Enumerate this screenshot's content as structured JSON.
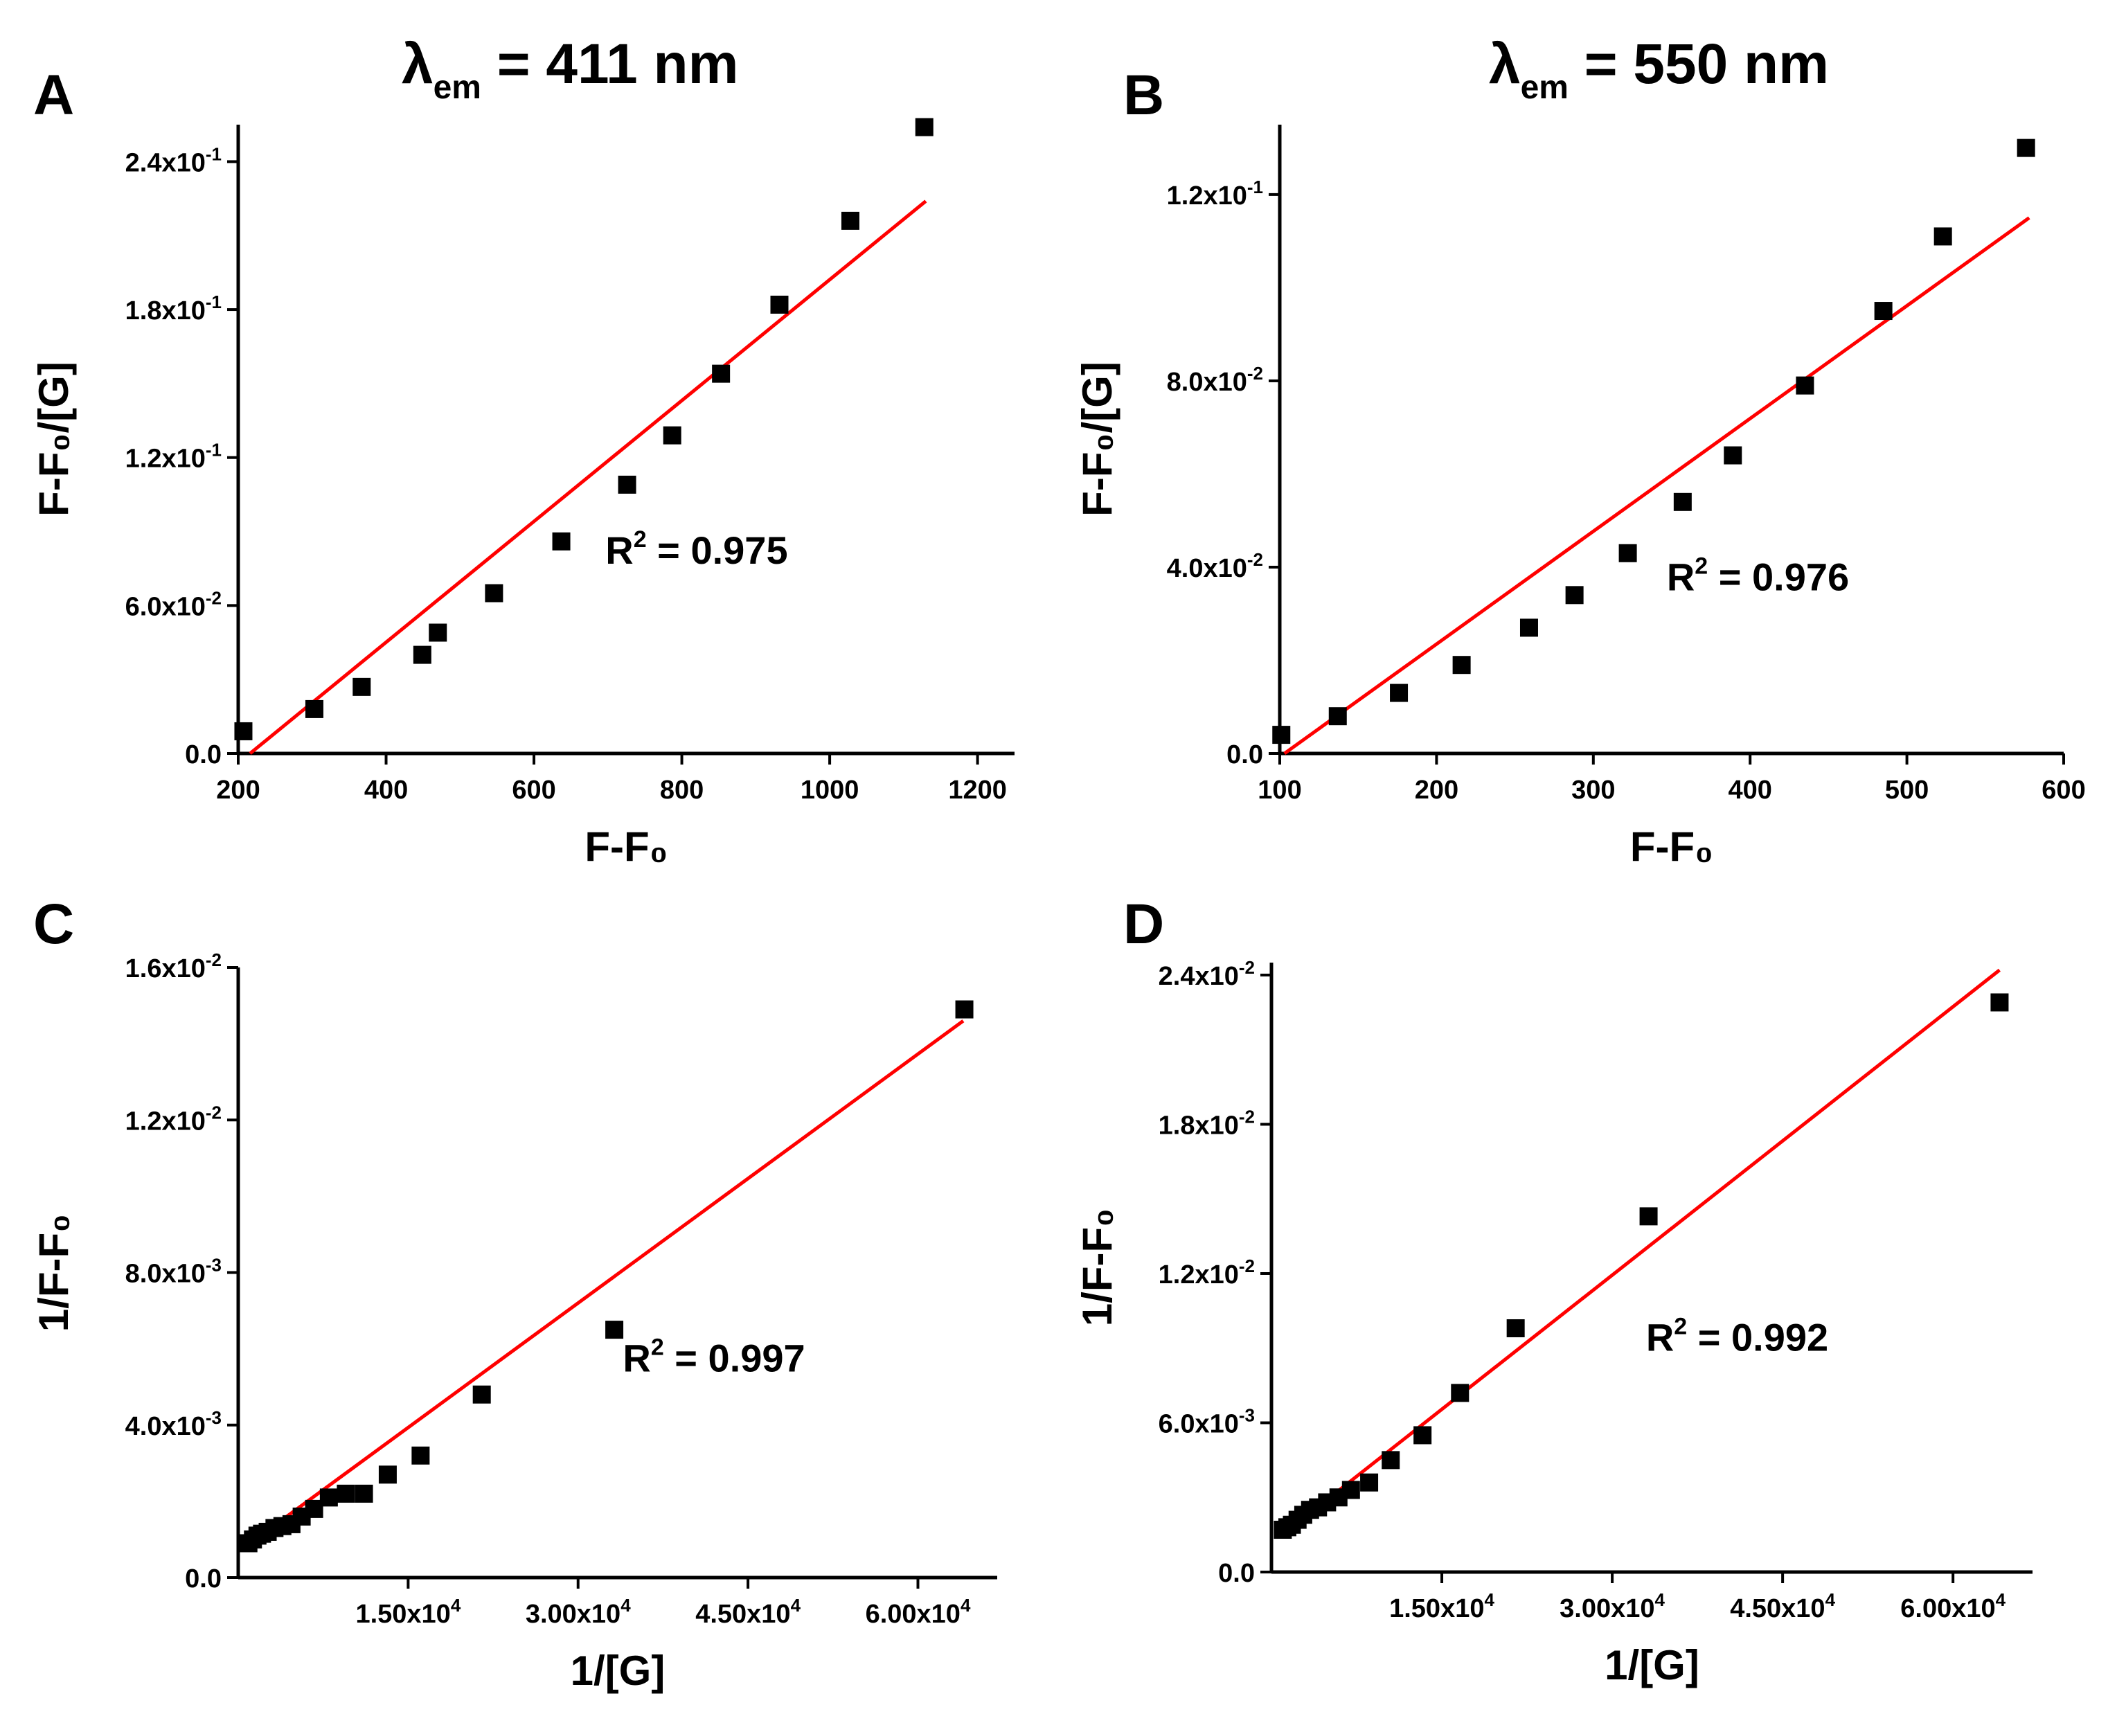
{
  "figure": {
    "titles": [
      {
        "symbol": "λ",
        "subscript": "em",
        "text": " = 411 nm"
      },
      {
        "symbol": "λ",
        "subscript": "em",
        "text": " = 550 nm"
      }
    ]
  },
  "chart_data": [
    {
      "panel": "A",
      "type": "scatter",
      "xlabel": "F-F₀",
      "ylabel": "F-F₀/[G]",
      "xlim": [
        200,
        1250
      ],
      "ylim": [
        0,
        0.255
      ],
      "xticks": [
        {
          "value": 200,
          "label": "200"
        },
        {
          "value": 400,
          "label": "400"
        },
        {
          "value": 600,
          "label": "600"
        },
        {
          "value": 800,
          "label": "800"
        },
        {
          "value": 1000,
          "label": "1000"
        },
        {
          "value": 1200,
          "label": "1200"
        }
      ],
      "yticks": [
        {
          "value": 0,
          "mant": "0.0",
          "exp": ""
        },
        {
          "value": 0.06,
          "mant": "6.0x10",
          "exp": "-2"
        },
        {
          "value": 0.12,
          "mant": "1.2x10",
          "exp": "-1"
        },
        {
          "value": 0.18,
          "mant": "1.8x10",
          "exp": "-1"
        },
        {
          "value": 0.24,
          "mant": "2.4x10",
          "exp": "-1"
        }
      ],
      "series": [
        {
          "name": "data",
          "x": [
            207,
            303,
            367,
            449,
            470,
            546,
            637,
            726,
            787,
            853,
            932,
            1028,
            1128
          ],
          "y": [
            0.009,
            0.018,
            0.027,
            0.04,
            0.049,
            0.065,
            0.086,
            0.109,
            0.129,
            0.154,
            0.182,
            0.216,
            0.254
          ]
        }
      ],
      "fit": {
        "x": [
          216,
          1130
        ],
        "y": [
          0.0,
          0.224
        ]
      },
      "annotation": {
        "text": "R",
        "sup": "2",
        "rest": " = 0.975",
        "x": 820,
        "y": 0.077
      }
    },
    {
      "panel": "B",
      "type": "scatter",
      "xlabel": "F-F₀",
      "ylabel": "F-F₀/[G]",
      "xlim": [
        100,
        600
      ],
      "ylim": [
        0,
        0.135
      ],
      "xticks": [
        {
          "value": 100,
          "label": "100"
        },
        {
          "value": 200,
          "label": "200"
        },
        {
          "value": 300,
          "label": "300"
        },
        {
          "value": 400,
          "label": "400"
        },
        {
          "value": 500,
          "label": "500"
        },
        {
          "value": 600,
          "label": "600"
        }
      ],
      "yticks": [
        {
          "value": 0,
          "mant": "0.0",
          "exp": ""
        },
        {
          "value": 0.04,
          "mant": "4.0x10",
          "exp": "-2"
        },
        {
          "value": 0.08,
          "mant": "8.0x10",
          "exp": "-2"
        },
        {
          "value": 0.12,
          "mant": "1.2x10",
          "exp": "-1"
        }
      ],
      "series": [
        {
          "name": "data",
          "x": [
            101,
            137,
            176,
            216,
            259,
            288,
            322,
            357,
            389,
            435,
            485,
            523,
            576
          ],
          "y": [
            0.004,
            0.008,
            0.013,
            0.019,
            0.027,
            0.034,
            0.043,
            0.054,
            0.064,
            0.079,
            0.095,
            0.111,
            0.13
          ]
        }
      ],
      "fit": {
        "x": [
          103,
          578
        ],
        "y": [
          0.0,
          0.115
        ]
      },
      "annotation": {
        "text": "R",
        "sup": "2",
        "rest": " = 0.976",
        "x": 405,
        "y": 0.035
      }
    },
    {
      "panel": "C",
      "type": "scatter",
      "xlabel": "1/[G]",
      "ylabel": "1/F-F₀",
      "xlim": [
        0,
        67000
      ],
      "ylim": [
        0,
        0.016
      ],
      "xticks": [
        {
          "value": 15000,
          "mant": "1.50x10",
          "exp": "4"
        },
        {
          "value": 30000,
          "mant": "3.00x10",
          "exp": "4"
        },
        {
          "value": 45000,
          "mant": "4.50x10",
          "exp": "4"
        },
        {
          "value": 60000,
          "mant": "6.00x10",
          "exp": "4"
        }
      ],
      "yticks": [
        {
          "value": 0,
          "mant": "0.0",
          "exp": ""
        },
        {
          "value": 0.004,
          "mant": "4.0x10",
          "exp": "-3"
        },
        {
          "value": 0.008,
          "mant": "8.0x10",
          "exp": "-3"
        },
        {
          "value": 0.012,
          "mant": "1.2x10",
          "exp": "-2"
        },
        {
          "value": 0.016,
          "mant": "1.6x10",
          "exp": "-2"
        }
      ],
      "series": [
        {
          "name": "data",
          "x": [
            900,
            1300,
            1700,
            2100,
            2600,
            3200,
            3900,
            4700,
            5600,
            6700,
            8000,
            9500,
            11100,
            13200,
            16100,
            21500,
            33200,
            64100
          ],
          "y": [
            0.0009,
            0.001,
            0.0011,
            0.00115,
            0.0012,
            0.0013,
            0.00135,
            0.0014,
            0.0016,
            0.0018,
            0.0021,
            0.0022,
            0.0022,
            0.0027,
            0.0032,
            0.0048,
            0.0065,
            0.0149
          ]
        }
      ],
      "fit": {
        "x": [
          600,
          64000
        ],
        "y": [
          0.0008,
          0.0146
        ]
      },
      "annotation": {
        "text": "R",
        "sup": "2",
        "rest": " = 0.997",
        "x": 42000,
        "y": 0.0054
      }
    },
    {
      "panel": "D",
      "type": "scatter",
      "xlabel": "1/[G]",
      "ylabel": "1/F-F₀",
      "xlim": [
        0,
        67000
      ],
      "ylim": [
        0,
        0.0245
      ],
      "xticks": [
        {
          "value": 15000,
          "mant": "1.50x10",
          "exp": "4"
        },
        {
          "value": 30000,
          "mant": "3.00x10",
          "exp": "4"
        },
        {
          "value": 45000,
          "mant": "4.50x10",
          "exp": "4"
        },
        {
          "value": 60000,
          "mant": "6.00x10",
          "exp": "4"
        }
      ],
      "yticks": [
        {
          "value": 0,
          "mant": "0.0",
          "exp": ""
        },
        {
          "value": 0.006,
          "mant": "6.0x10",
          "exp": "-3"
        },
        {
          "value": 0.012,
          "mant": "1.2x10",
          "exp": "-2"
        },
        {
          "value": 0.018,
          "mant": "1.8x10",
          "exp": "-2"
        },
        {
          "value": 0.024,
          "mant": "2.4x10",
          "exp": "-2"
        }
      ],
      "series": [
        {
          "name": "data",
          "x": [
            1000,
            1400,
            1800,
            2300,
            2800,
            3400,
            4100,
            4900,
            5900,
            7000,
            8600,
            10500,
            13300,
            16600,
            21500,
            33200,
            64100
          ],
          "y": [
            0.0017,
            0.0018,
            0.0019,
            0.0021,
            0.0023,
            0.0025,
            0.0026,
            0.0028,
            0.003,
            0.0033,
            0.0036,
            0.0045,
            0.0055,
            0.0072,
            0.0098,
            0.0143,
            0.0229
          ]
        }
      ],
      "fit": {
        "x": [
          700,
          64100
        ],
        "y": [
          0.0014,
          0.0242
        ]
      },
      "annotation": {
        "text": "R",
        "sup": "2",
        "rest": " = 0.992",
        "x": 41000,
        "y": 0.0089
      }
    }
  ]
}
